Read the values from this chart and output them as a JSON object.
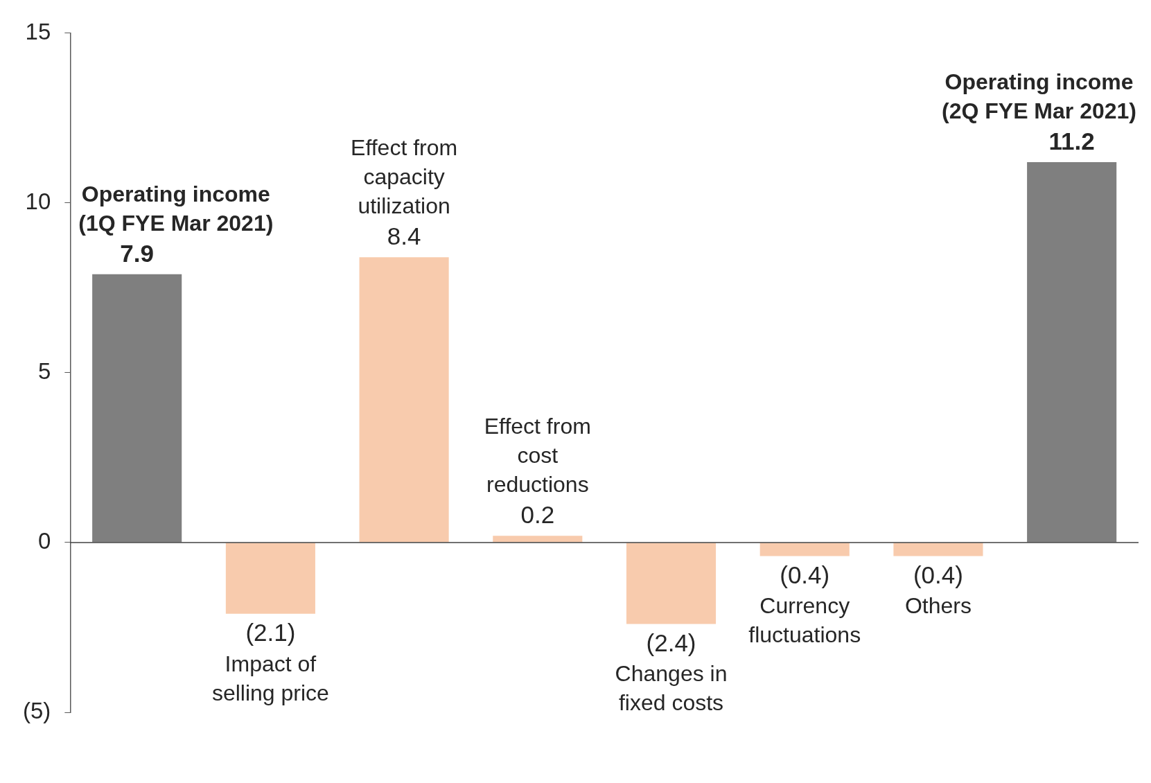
{
  "chart_data": {
    "type": "bar",
    "categories": [
      "Operating income (1Q FYE Mar 2021)",
      "Impact of selling price",
      "Effect from capacity utilization",
      "Effect from cost reductions",
      "Changes in fixed costs",
      "Currency fluctuations",
      "Others",
      "Operating income (2Q FYE Mar 2021)"
    ],
    "values": [
      7.9,
      -2.1,
      8.4,
      0.2,
      -2.4,
      -0.4,
      -0.4,
      11.2
    ],
    "colors": [
      "#7f7f7f",
      "#f8cbad",
      "#f8cbad",
      "#f8cbad",
      "#f8cbad",
      "#f8cbad",
      "#f8cbad",
      "#7f7f7f"
    ],
    "value_labels": [
      "7.9",
      "(2.1)",
      "8.4",
      "0.2",
      "(2.4)",
      "(0.4)",
      "(0.4)",
      "11.2"
    ],
    "ylim": [
      -5,
      15
    ],
    "yticks": [
      {
        "value": -5,
        "label": "(5)"
      },
      0,
      5,
      10,
      15
    ],
    "tick_labels": "y",
    "grid": false,
    "legend": false
  }
}
